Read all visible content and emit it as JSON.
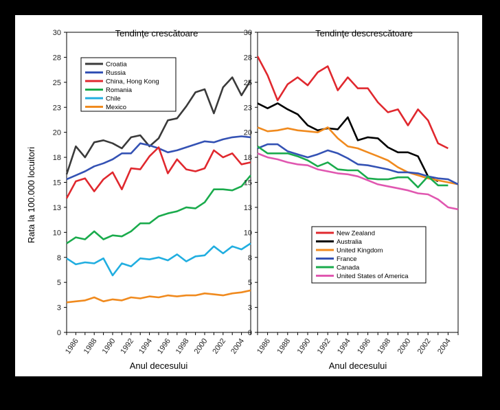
{
  "ylabel": "Rata la 100.000 locuitori",
  "charts": [
    {
      "id": "left",
      "title": "Tendinţe crescătoare",
      "xlabel": "Anul decesului",
      "type": "line",
      "x": [
        1985,
        1986,
        1987,
        1988,
        1989,
        1990,
        1991,
        1992,
        1993,
        1994,
        1995,
        1996,
        1997,
        1998,
        1999,
        2000,
        2001,
        2002,
        2003,
        2004,
        2005
      ],
      "xticks": [
        "1986",
        "1988",
        "1990",
        "1992",
        "1994",
        "1996",
        "1998",
        "2000",
        "2002",
        "2004"
      ],
      "ylim": [
        0,
        30
      ],
      "yticks": [
        "0",
        "3",
        "5",
        "8",
        "10",
        "13",
        "15",
        "18",
        "20",
        "23",
        "25",
        "28",
        "30"
      ],
      "series": [
        {
          "name": "Croatia",
          "color": "#3a3a3a",
          "values": [
            15.8,
            18.6,
            17.5,
            19.0,
            19.2,
            18.9,
            18.4,
            19.5,
            19.7,
            18.6,
            19.4,
            21.2,
            21.4,
            22.6,
            24.0,
            24.3,
            21.9,
            24.5,
            25.5,
            23.7,
            25.2
          ]
        },
        {
          "name": "Russia",
          "color": "#3452b4",
          "values": [
            15.3,
            15.7,
            16.1,
            16.6,
            16.9,
            17.3,
            17.9,
            17.9,
            18.9,
            18.7,
            18.4,
            18.0,
            18.2,
            18.5,
            18.8,
            19.1,
            19.0,
            19.3,
            19.5,
            19.6,
            19.5
          ]
        },
        {
          "name": "China, Hong Kong",
          "color": "#e0282e",
          "values": [
            13.4,
            15.1,
            15.4,
            14.1,
            15.3,
            16.0,
            14.3,
            16.4,
            16.3,
            17.6,
            18.5,
            15.9,
            17.3,
            16.3,
            16.1,
            16.4,
            18.2,
            17.5,
            17.9,
            16.8,
            17.0
          ]
        },
        {
          "name": "Romania",
          "color": "#1aab4c",
          "values": [
            8.9,
            9.5,
            9.3,
            10.1,
            9.3,
            9.7,
            9.6,
            10.1,
            10.9,
            10.9,
            11.6,
            11.9,
            12.1,
            12.5,
            12.4,
            13.0,
            14.3,
            14.3,
            14.2,
            14.6,
            15.7
          ]
        },
        {
          "name": "Chile",
          "color": "#21aee0",
          "values": [
            7.4,
            6.8,
            7.0,
            6.9,
            7.4,
            5.7,
            6.9,
            6.6,
            7.4,
            7.3,
            7.5,
            7.2,
            7.8,
            7.1,
            7.6,
            7.7,
            8.6,
            7.9,
            8.6,
            8.3,
            8.9
          ]
        },
        {
          "name": "Mexico",
          "color": "#f08a1e",
          "values": [
            3.0,
            3.1,
            3.2,
            3.5,
            3.1,
            3.3,
            3.2,
            3.5,
            3.4,
            3.6,
            3.5,
            3.7,
            3.6,
            3.7,
            3.7,
            3.9,
            3.8,
            3.7,
            3.9,
            4.0,
            4.2
          ]
        }
      ]
    },
    {
      "id": "right",
      "title": "Tendinţe descrescătoare",
      "xlabel": "Anul decesului",
      "type": "line",
      "x": [
        1985,
        1986,
        1987,
        1988,
        1989,
        1990,
        1991,
        1992,
        1993,
        1994,
        1995,
        1996,
        1997,
        1998,
        1999,
        2000,
        2001,
        2002,
        2003,
        2004,
        2005
      ],
      "xticks": [
        "1986",
        "1988",
        "1990",
        "1992",
        "1994",
        "1996",
        "1998",
        "2000",
        "2002",
        "2004"
      ],
      "ylim": [
        0,
        30
      ],
      "yticks": [
        "0",
        "3",
        "5",
        "8",
        "10",
        "13",
        "15",
        "18",
        "20",
        "23",
        "25",
        "28",
        "30"
      ],
      "series": [
        {
          "name": "New Zealand",
          "color": "#e0282e",
          "values": [
            27.6,
            25.7,
            23.2,
            24.8,
            25.5,
            24.7,
            26.0,
            26.6,
            24.2,
            25.5,
            24.4,
            24.4,
            23.0,
            22.0,
            22.3,
            20.7,
            22.3,
            21.2,
            18.9,
            18.4,
            null
          ]
        },
        {
          "name": "Australia",
          "color": "#000000",
          "values": [
            22.9,
            22.4,
            22.9,
            22.3,
            21.8,
            20.7,
            20.2,
            20.4,
            20.3,
            21.5,
            19.2,
            19.5,
            19.4,
            18.5,
            18.0,
            18.0,
            17.6,
            15.6,
            15.1,
            null,
            null
          ]
        },
        {
          "name": "United Kingdom",
          "color": "#f08a1e",
          "values": [
            20.5,
            20.1,
            20.2,
            20.4,
            20.2,
            20.1,
            20.0,
            20.5,
            19.4,
            18.6,
            18.4,
            18.0,
            17.6,
            17.2,
            16.5,
            16.0,
            15.7,
            15.4,
            15.2,
            15.0,
            14.8
          ]
        },
        {
          "name": "France",
          "color": "#3452b4",
          "values": [
            18.4,
            18.8,
            18.8,
            18.1,
            17.8,
            17.5,
            17.8,
            18.2,
            17.9,
            17.4,
            16.8,
            16.7,
            16.5,
            16.3,
            16.0,
            16.0,
            15.9,
            15.6,
            15.4,
            15.3,
            14.8
          ]
        },
        {
          "name": "Canada",
          "color": "#1aab4c",
          "values": [
            18.6,
            17.9,
            17.9,
            17.9,
            17.6,
            17.2,
            16.6,
            17.0,
            16.3,
            16.2,
            16.2,
            15.4,
            15.3,
            15.3,
            15.5,
            15.5,
            14.5,
            15.6,
            14.7,
            14.7,
            null
          ]
        },
        {
          "name": "United States of America",
          "color": "#e057b0",
          "values": [
            17.9,
            17.5,
            17.3,
            17.0,
            16.8,
            16.7,
            16.3,
            16.1,
            15.9,
            15.8,
            15.6,
            15.2,
            14.8,
            14.6,
            14.4,
            14.2,
            13.9,
            13.8,
            13.3,
            12.5,
            12.3
          ]
        }
      ]
    }
  ]
}
